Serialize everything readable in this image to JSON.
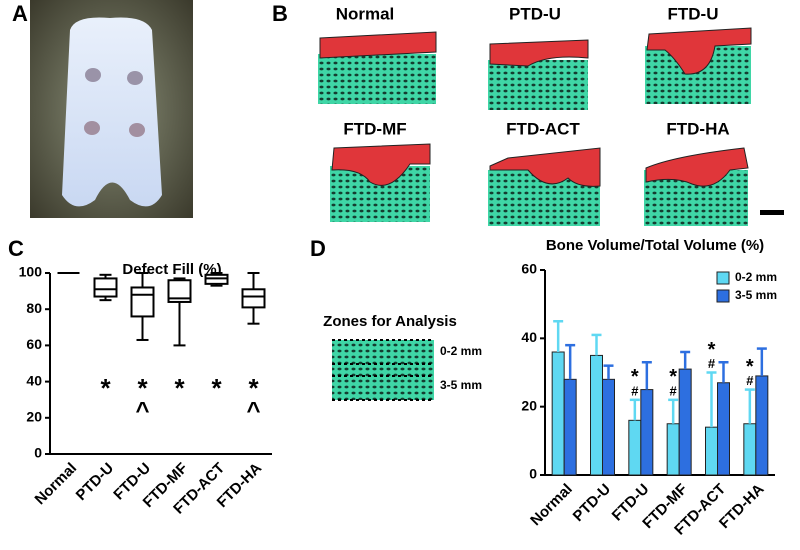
{
  "panel_labels": [
    "A",
    "B",
    "C",
    "D"
  ],
  "ct_labels": [
    "Normal",
    "PTD-U",
    "FTD-U",
    "FTD-MF",
    "FTD-ACT",
    "FTD-HA"
  ],
  "zones": {
    "title": "Zones for Analysis",
    "labels": [
      "0-2 mm",
      "3-5 mm"
    ]
  },
  "chart_data": [
    {
      "type": "box",
      "title": "Defect Fill (%)",
      "categories": [
        "Normal",
        "PTD-U",
        "FTD-U",
        "FTD-MF",
        "FTD-ACT",
        "FTD-HA"
      ],
      "boxes": [
        {
          "min": 100,
          "q1": 100,
          "median": 100,
          "q3": 100,
          "max": 100
        },
        {
          "min": 85,
          "q1": 87,
          "median": 91,
          "q3": 97,
          "max": 99
        },
        {
          "min": 63,
          "q1": 76,
          "median": 88,
          "q3": 92,
          "max": 100
        },
        {
          "min": 60,
          "q1": 84,
          "median": 86,
          "q3": 96,
          "max": 97
        },
        {
          "min": 93,
          "q1": 94,
          "median": 97,
          "q3": 99,
          "max": 100
        },
        {
          "min": 72,
          "q1": 81,
          "median": 87,
          "q3": 91,
          "max": 100
        }
      ],
      "significance": [
        null,
        "*",
        "*",
        "*",
        "*",
        "*"
      ],
      "significance2": [
        null,
        null,
        "^",
        null,
        null,
        "^"
      ],
      "ylim": [
        0,
        100
      ],
      "yticks": [
        0,
        20,
        40,
        60,
        80,
        100
      ]
    },
    {
      "type": "bar",
      "title": "Bone Volume/Total Volume (%)",
      "categories": [
        "Normal",
        "PTD-U",
        "FTD-U",
        "FTD-MF",
        "FTD-ACT",
        "FTD-HA"
      ],
      "series": [
        {
          "name": "0-2 mm",
          "color": "#5fd8f2",
          "values": [
            36,
            35,
            16,
            15,
            14,
            15
          ],
          "errors": [
            9,
            6,
            6,
            7,
            16,
            10
          ]
        },
        {
          "name": "3-5 mm",
          "color": "#2d6fe0",
          "values": [
            28,
            28,
            25,
            31,
            27,
            29
          ],
          "errors": [
            10,
            4,
            8,
            5,
            6,
            8
          ]
        }
      ],
      "significance": [
        null,
        null,
        "*",
        "*",
        "*",
        "*"
      ],
      "significance2": [
        null,
        null,
        "#",
        "#",
        "#",
        "#"
      ],
      "ylim": [
        0,
        60
      ],
      "yticks": [
        0,
        20,
        40,
        60
      ],
      "legend": "top-right"
    }
  ]
}
